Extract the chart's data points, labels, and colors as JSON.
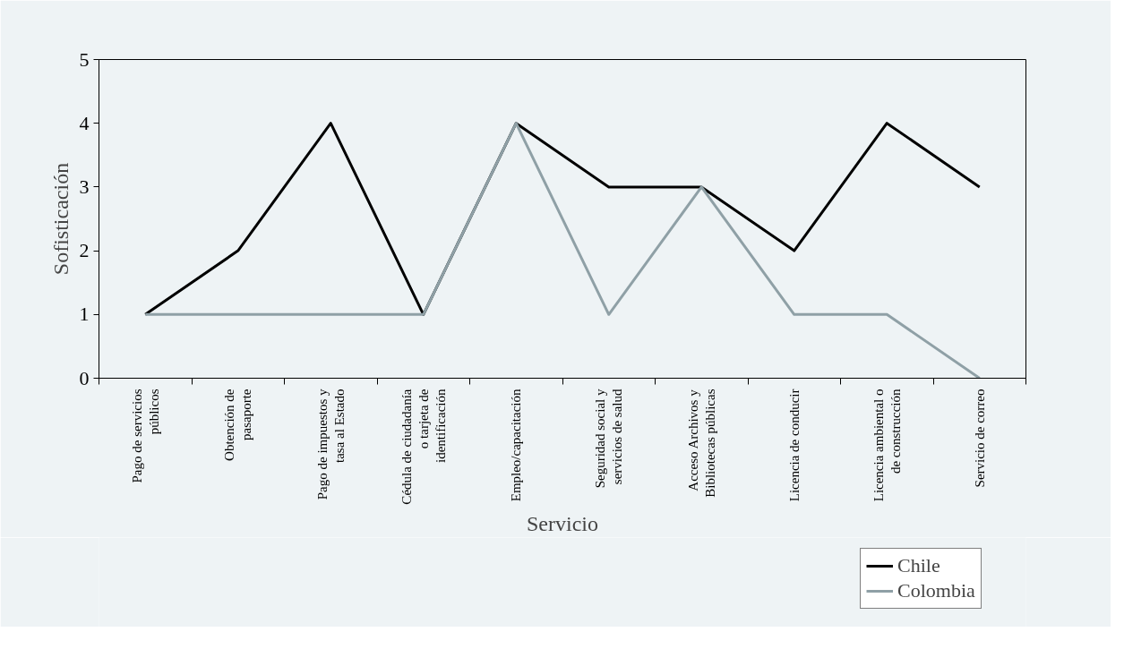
{
  "chart_data": {
    "type": "line",
    "xlabel": "Servicio",
    "ylabel": "Sofisticación",
    "categories": [
      "Pago de servicios\npúblicos",
      "Obtención de\npasaporte",
      "Pago de impuestos y\ntasa al Estado",
      "Cédula de ciudadanía\no tarjeta de\nidentificación",
      "Empleo/capacitación",
      "Seguridad social y\nservicios de salud",
      "Acceso Archivos y\nBibliotecas públicas",
      "Licencia de conducir",
      "Licencia ambiental o\nde construcción",
      "Servicio de correo"
    ],
    "series": [
      {
        "name": "Chile",
        "color": "#000000",
        "values": [
          1,
          2,
          4,
          1,
          4,
          3,
          3,
          2,
          4,
          3
        ]
      },
      {
        "name": "Colombia",
        "color": "#8fa0a6",
        "values": [
          1,
          1,
          1,
          1,
          4,
          1,
          3,
          1,
          1,
          0
        ]
      }
    ],
    "ylim": [
      0,
      5
    ],
    "yticks": [
      0,
      1,
      2,
      3,
      4,
      5
    ],
    "grid": false,
    "legend": "bottom right",
    "marker": "none",
    "line_style": "solid"
  }
}
